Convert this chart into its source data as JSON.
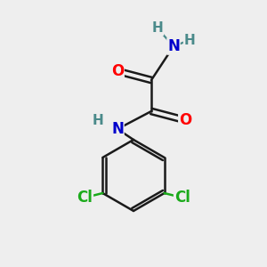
{
  "bg_color": "#eeeeee",
  "bond_color": "#1a1a1a",
  "bond_lw": 1.8,
  "atom_colors": {
    "O": "#ff0000",
    "N": "#0000cc",
    "N_top": "#0000cc",
    "Cl": "#1aaa1a",
    "H": "#4a8a8a",
    "C": "#1a1a1a"
  },
  "font_size": 12,
  "font_size_H": 11
}
